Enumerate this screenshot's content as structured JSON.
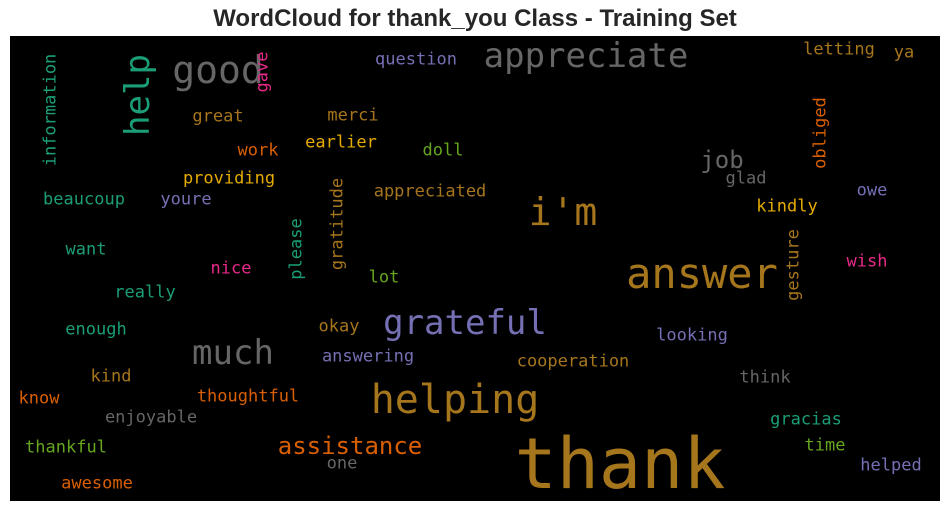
{
  "chart_data": {
    "type": "wordcloud",
    "title": "WordCloud for thank_you Class - Training Set",
    "background": "#000000",
    "words": [
      {
        "text": "thank",
        "color": "#a6761d",
        "vertical": false
      },
      {
        "text": "answer",
        "color": "#a6761d",
        "vertical": false
      },
      {
        "text": "helping",
        "color": "#a6761d",
        "vertical": false
      },
      {
        "text": "grateful",
        "color": "#7570b3",
        "vertical": false
      },
      {
        "text": "i'm",
        "color": "#a6761d",
        "vertical": false
      },
      {
        "text": "appreciate",
        "color": "#666666",
        "vertical": false
      },
      {
        "text": "good",
        "color": "#666666",
        "vertical": false
      },
      {
        "text": "help",
        "color": "#1b9e77",
        "vertical": true
      },
      {
        "text": "much",
        "color": "#666666",
        "vertical": false
      },
      {
        "text": "assistance",
        "color": "#d95f02",
        "vertical": false
      },
      {
        "text": "job",
        "color": "#666666",
        "vertical": false
      },
      {
        "text": "question",
        "color": "#7570b3",
        "vertical": false
      },
      {
        "text": "letting",
        "color": "#a6761d",
        "vertical": false
      },
      {
        "text": "ya",
        "color": "#a6761d",
        "vertical": false
      },
      {
        "text": "gave",
        "color": "#e7298a",
        "vertical": true
      },
      {
        "text": "information",
        "color": "#1b9e77",
        "vertical": true
      },
      {
        "text": "great",
        "color": "#a6761d",
        "vertical": false
      },
      {
        "text": "merci",
        "color": "#a6761d",
        "vertical": false
      },
      {
        "text": "work",
        "color": "#d95f02",
        "vertical": false
      },
      {
        "text": "earlier",
        "color": "#e6ab02",
        "vertical": false
      },
      {
        "text": "doll",
        "color": "#66a61e",
        "vertical": false
      },
      {
        "text": "obliged",
        "color": "#d95f02",
        "vertical": true
      },
      {
        "text": "glad",
        "color": "#666666",
        "vertical": false
      },
      {
        "text": "owe",
        "color": "#7570b3",
        "vertical": false
      },
      {
        "text": "providing",
        "color": "#e6ab02",
        "vertical": false
      },
      {
        "text": "beaucoup",
        "color": "#1b9e77",
        "vertical": false
      },
      {
        "text": "youre",
        "color": "#7570b3",
        "vertical": false
      },
      {
        "text": "appreciated",
        "color": "#a6761d",
        "vertical": false
      },
      {
        "text": "kindly",
        "color": "#e6ab02",
        "vertical": false
      },
      {
        "text": "gratitude",
        "color": "#a6761d",
        "vertical": true
      },
      {
        "text": "please",
        "color": "#1b9e77",
        "vertical": true
      },
      {
        "text": "gesture",
        "color": "#a6761d",
        "vertical": true
      },
      {
        "text": "want",
        "color": "#1b9e77",
        "vertical": false
      },
      {
        "text": "nice",
        "color": "#e7298a",
        "vertical": false
      },
      {
        "text": "lot",
        "color": "#66a61e",
        "vertical": false
      },
      {
        "text": "wish",
        "color": "#e7298a",
        "vertical": false
      },
      {
        "text": "really",
        "color": "#1b9e77",
        "vertical": false
      },
      {
        "text": "enough",
        "color": "#1b9e77",
        "vertical": false
      },
      {
        "text": "okay",
        "color": "#a6761d",
        "vertical": false
      },
      {
        "text": "looking",
        "color": "#7570b3",
        "vertical": false
      },
      {
        "text": "answering",
        "color": "#7570b3",
        "vertical": false
      },
      {
        "text": "cooperation",
        "color": "#a6761d",
        "vertical": false
      },
      {
        "text": "kind",
        "color": "#a6761d",
        "vertical": false
      },
      {
        "text": "think",
        "color": "#666666",
        "vertical": false
      },
      {
        "text": "know",
        "color": "#d95f02",
        "vertical": false
      },
      {
        "text": "thoughtful",
        "color": "#d95f02",
        "vertical": false
      },
      {
        "text": "enjoyable",
        "color": "#666666",
        "vertical": false
      },
      {
        "text": "gracias",
        "color": "#1b9e77",
        "vertical": false
      },
      {
        "text": "thankful",
        "color": "#66a61e",
        "vertical": false
      },
      {
        "text": "one",
        "color": "#666666",
        "vertical": false
      },
      {
        "text": "time",
        "color": "#66a61e",
        "vertical": false
      },
      {
        "text": "helped",
        "color": "#7570b3",
        "vertical": false
      },
      {
        "text": "awesome",
        "color": "#d95f02",
        "vertical": false
      }
    ]
  }
}
